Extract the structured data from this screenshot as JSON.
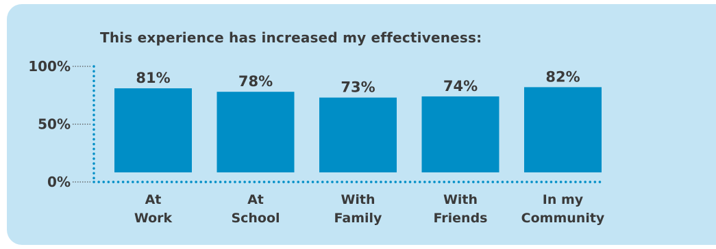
{
  "chart_data": {
    "type": "bar",
    "title": "This experience has increased my effectiveness:",
    "categories": [
      [
        "At",
        "Work"
      ],
      [
        "At",
        "School"
      ],
      [
        "With",
        "Family"
      ],
      [
        "With",
        "Friends"
      ],
      [
        "In my",
        "Community"
      ]
    ],
    "values": [
      81,
      78,
      73,
      74,
      82
    ],
    "value_labels": [
      "81%",
      "78%",
      "73%",
      "74%",
      "82%"
    ],
    "y_ticks": [
      {
        "value": 0,
        "label": "0%"
      },
      {
        "value": 50,
        "label": "50%"
      },
      {
        "value": 100,
        "label": "100%"
      }
    ],
    "ylim": [
      0,
      100
    ],
    "grid": false,
    "legend": "none",
    "colors": {
      "background": "#c3e4f4",
      "bar": "#008ec6",
      "axis": "#008ec6",
      "text": "#3a3a3a"
    }
  }
}
